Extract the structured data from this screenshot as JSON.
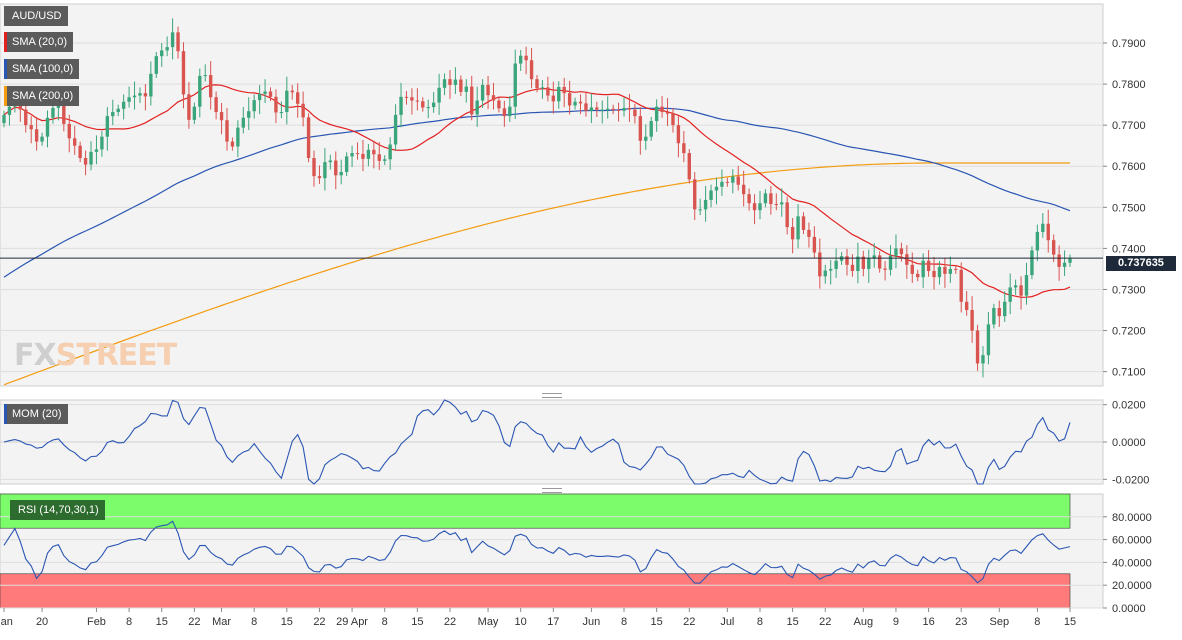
{
  "chart_data": [
    {
      "type": "candlestick",
      "title": "AUD/USD",
      "overlays": [
        {
          "name": "SMA (20,0)",
          "color": "#e32020"
        },
        {
          "name": "SMA (100,0)",
          "color": "#2a56b3"
        },
        {
          "name": "SMA (200,0)",
          "color": "#f39c12"
        }
      ],
      "current_price": 0.73763,
      "current_price_label": "0.737635",
      "ylim": [
        0.7065,
        0.7995
      ],
      "y_ticks": [
        "0.7900",
        "0.7800",
        "0.7700",
        "0.7600",
        "0.7500",
        "0.7400",
        "0.7300",
        "0.7200",
        "0.7100"
      ],
      "closes": [
        0.7725,
        0.7745,
        0.776,
        0.7738,
        0.77,
        0.769,
        0.766,
        0.7672,
        0.7718,
        0.7742,
        0.775,
        0.7703,
        0.7668,
        0.765,
        0.762,
        0.7604,
        0.7635,
        0.7641,
        0.7672,
        0.7722,
        0.7732,
        0.774,
        0.7757,
        0.7768,
        0.7772,
        0.7778,
        0.777,
        0.7825,
        0.7868,
        0.7882,
        0.789,
        0.7926,
        0.788,
        0.7775,
        0.7713,
        0.7745,
        0.782,
        0.7822,
        0.7768,
        0.7732,
        0.7712,
        0.766,
        0.7648,
        0.7694,
        0.7718,
        0.7734,
        0.7761,
        0.7776,
        0.7782,
        0.7769,
        0.7731,
        0.7732,
        0.7784,
        0.778,
        0.7752,
        0.7719,
        0.762,
        0.7576,
        0.7571,
        0.761,
        0.7614,
        0.7578,
        0.7586,
        0.7624,
        0.7632,
        0.763,
        0.7618,
        0.764,
        0.7629,
        0.7613,
        0.7617,
        0.7653,
        0.7725,
        0.7769,
        0.7768,
        0.776,
        0.7758,
        0.7743,
        0.7744,
        0.7755,
        0.7791,
        0.7812,
        0.7798,
        0.7811,
        0.7781,
        0.7794,
        0.7726,
        0.776,
        0.7798,
        0.7773,
        0.776,
        0.7741,
        0.7722,
        0.7745,
        0.785,
        0.7869,
        0.7858,
        0.7812,
        0.779,
        0.7792,
        0.7772,
        0.7758,
        0.7793,
        0.7778,
        0.7748,
        0.7757,
        0.7753,
        0.7735,
        0.7743,
        0.7738,
        0.7738,
        0.774,
        0.7737,
        0.7735,
        0.7742,
        0.7738,
        0.7722,
        0.7662,
        0.7672,
        0.771,
        0.7745,
        0.7732,
        0.7728,
        0.77,
        0.7656,
        0.7632,
        0.7568,
        0.7495,
        0.7495,
        0.7518,
        0.7541,
        0.755,
        0.7562,
        0.756,
        0.7575,
        0.7555,
        0.7532,
        0.751,
        0.7493,
        0.751,
        0.7534,
        0.7508,
        0.7507,
        0.7512,
        0.7452,
        0.7422,
        0.7478,
        0.7445,
        0.7428,
        0.739,
        0.7332,
        0.7346,
        0.735,
        0.737,
        0.7381,
        0.736,
        0.7345,
        0.738,
        0.735,
        0.7375,
        0.7383,
        0.7351,
        0.7348,
        0.7382,
        0.74,
        0.7386,
        0.736,
        0.7338,
        0.733,
        0.737,
        0.7345,
        0.733,
        0.7355,
        0.7338,
        0.735,
        0.7348,
        0.727,
        0.725,
        0.72,
        0.712,
        0.714,
        0.7215,
        0.7255,
        0.7235,
        0.727,
        0.7305,
        0.731,
        0.7285,
        0.7335,
        0.7395,
        0.744,
        0.746,
        0.742,
        0.7385,
        0.7355,
        0.7365,
        0.7375
      ]
    },
    {
      "type": "line",
      "title": "MOM (20)",
      "ylim": [
        -0.0225,
        0.0225
      ],
      "y_ticks": [
        "0.0200",
        "0.0000",
        "-0.0200"
      ]
    },
    {
      "type": "line",
      "title": "RSI (14,70,30,1)",
      "ylim": [
        0,
        100
      ],
      "y_ticks": [
        "80.0000",
        "60.0000",
        "40.0000",
        "20.0000",
        "0.0000"
      ],
      "overbought": 70,
      "oversold": 30
    }
  ],
  "x_axis_labels": [
    "Jan",
    "20",
    "Feb",
    "8",
    "15",
    "22",
    "Mar",
    "8",
    "15",
    "22",
    "29 Apr",
    "8",
    "15",
    "22",
    "May",
    "10",
    "17",
    "Jun",
    "8",
    "15",
    "22",
    "Jul",
    "8",
    "15",
    "22",
    "Aug",
    "9",
    "16",
    "23",
    "Sep",
    "8",
    "15"
  ],
  "x_axis_label_bars": [
    0,
    7,
    17,
    23,
    29,
    35,
    40,
    46,
    52,
    58,
    64,
    70,
    76,
    82,
    89,
    95,
    101,
    108,
    114,
    120,
    126,
    133,
    139,
    145,
    151,
    158,
    164,
    170,
    176,
    183,
    190,
    196
  ],
  "watermark": {
    "fx": "FX",
    "street": "STREET"
  }
}
